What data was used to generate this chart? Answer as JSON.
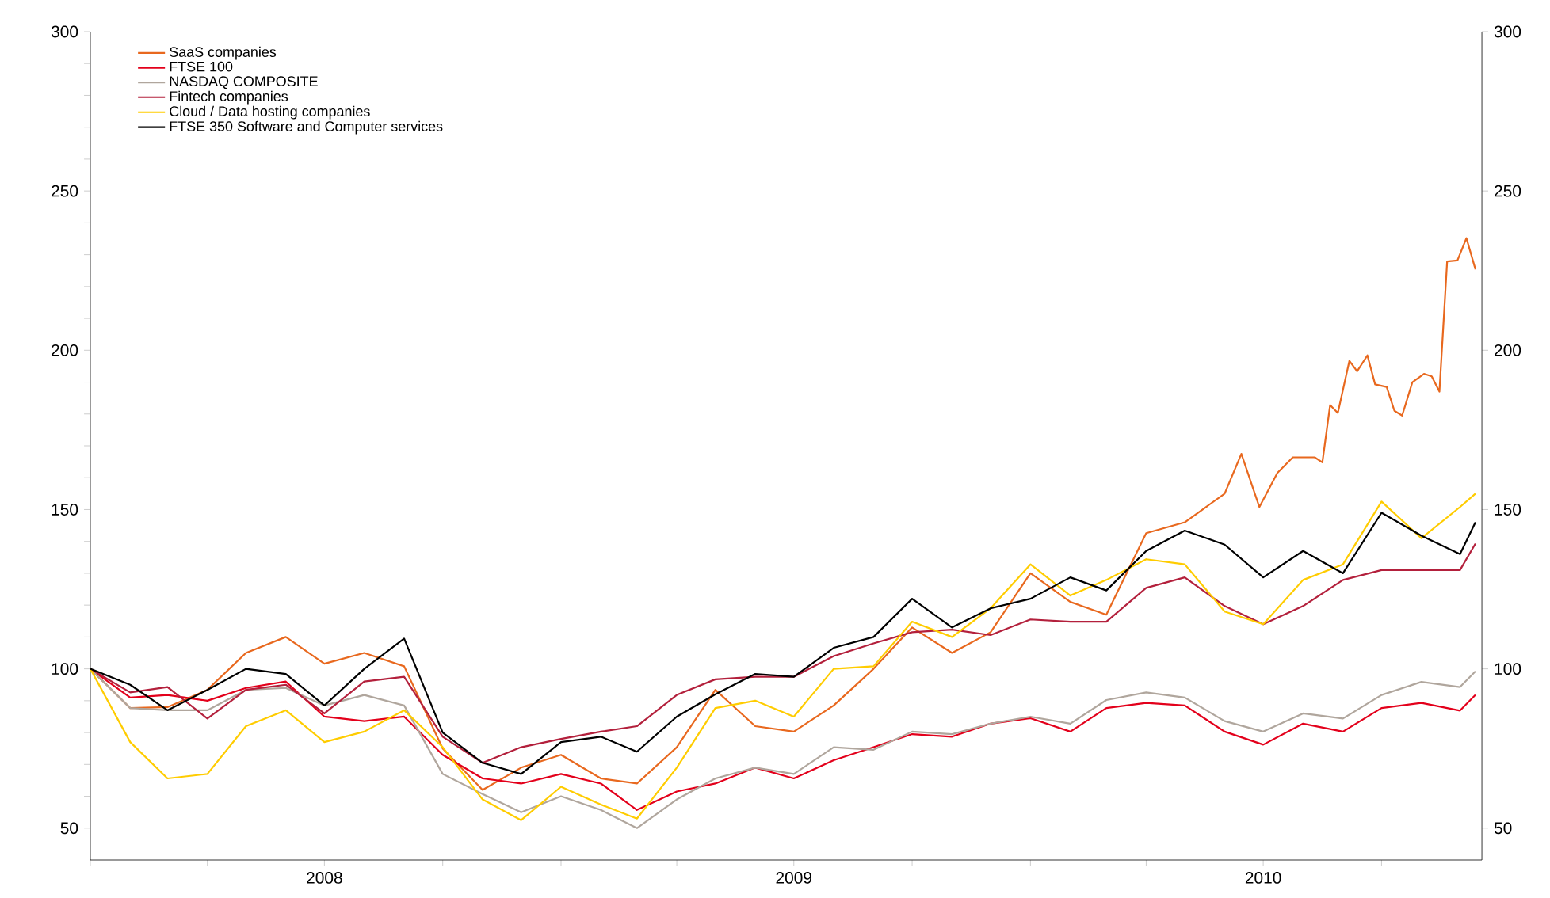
{
  "chart_data": {
    "type": "line",
    "xlim": [
      "2008-01-01",
      "2010-12-18"
    ],
    "ylim": [
      40,
      300
    ],
    "y2lim": [
      40,
      300
    ],
    "xticks": [
      {
        "value": "2008-01-01",
        "label": null
      },
      {
        "value": "2008-04-01",
        "label": null
      },
      {
        "value": "2008-07-01",
        "label": "2008"
      },
      {
        "value": "2008-10-01",
        "label": null
      },
      {
        "value": "2009-01-01",
        "label": null
      },
      {
        "value": "2009-04-01",
        "label": null
      },
      {
        "value": "2009-07-01",
        "label": "2009"
      },
      {
        "value": "2009-10-01",
        "label": null
      },
      {
        "value": "2010-01-01",
        "label": null
      },
      {
        "value": "2010-04-01",
        "label": null
      },
      {
        "value": "2010-07-01",
        "label": "2010"
      },
      {
        "value": "2010-10-01",
        "label": null
      }
    ],
    "yticks": [
      50,
      {
        "value": 60,
        "label": null
      },
      {
        "value": 70,
        "label": null
      },
      {
        "value": 80,
        "label": null
      },
      {
        "value": 90,
        "label": null
      },
      100,
      {
        "value": 110,
        "label": null
      },
      {
        "value": 120,
        "label": null
      },
      {
        "value": 130,
        "label": null
      },
      {
        "value": 140,
        "label": null
      },
      150,
      {
        "value": 160,
        "label": null
      },
      {
        "value": 170,
        "label": null
      },
      {
        "value": 180,
        "label": null
      },
      {
        "value": 190,
        "label": null
      },
      200,
      {
        "value": 210,
        "label": null
      },
      {
        "value": 220,
        "label": null
      },
      {
        "value": 230,
        "label": null
      },
      {
        "value": 240,
        "label": null
      },
      250,
      {
        "value": 260,
        "label": null
      },
      {
        "value": 270,
        "label": null
      },
      {
        "value": 280,
        "label": null
      },
      {
        "value": 290,
        "label": null
      },
      300
    ],
    "y2ticks": [
      50,
      100,
      150,
      200,
      250,
      300
    ],
    "legend": "top left",
    "grid": false,
    "marker": "none",
    "line_style": "solid",
    "x": [
      "2008-01-01",
      "2008-02-01",
      "2008-03-01",
      "2008-04-01",
      "2008-05-01",
      "2008-06-01",
      "2008-07-01",
      "2008-08-01",
      "2008-09-01",
      "2008-10-01",
      "2008-11-01",
      "2008-12-01",
      "2009-01-01",
      "2009-02-01",
      "2009-03-01",
      "2009-04-01",
      "2009-05-01",
      "2009-06-01",
      "2009-07-01",
      "2009-08-01",
      "2009-09-01",
      "2009-10-01",
      "2009-11-01",
      "2009-12-01",
      "2010-01-01",
      "2010-02-01",
      "2010-03-01",
      "2010-04-01",
      "2010-05-01",
      "2010-06-01",
      "2010-07-01",
      "2010-08-01",
      "2010-09-01",
      "2010-10-01",
      "2010-11-01",
      "2010-12-01",
      "2010-12-13"
    ],
    "series": [
      {
        "name": "SaaS companies",
        "color": "#e8681e",
        "x": [
          "2008-01-01",
          "2008-02-01",
          "2008-03-01",
          "2008-04-01",
          "2008-05-01",
          "2008-06-01",
          "2008-07-01",
          "2008-08-01",
          "2008-09-01",
          "2008-10-01",
          "2008-11-01",
          "2008-12-01",
          "2009-01-01",
          "2009-02-01",
          "2009-03-01",
          "2009-04-01",
          "2009-05-01",
          "2009-06-01",
          "2009-07-01",
          "2009-08-01",
          "2009-09-01",
          "2009-10-01",
          "2009-11-01",
          "2009-12-01",
          "2010-01-01",
          "2010-02-01",
          "2010-03-01",
          "2010-04-01",
          "2010-05-01",
          "2010-06-01",
          "2010-06-14",
          "2010-06-28",
          "2010-07-12",
          "2010-07-24",
          "2010-08-10",
          "2010-08-16",
          "2010-08-22",
          "2010-08-28",
          "2010-09-06",
          "2010-09-12",
          "2010-09-20",
          "2010-09-26",
          "2010-10-05",
          "2010-10-11",
          "2010-10-17",
          "2010-10-25",
          "2010-11-03",
          "2010-11-09",
          "2010-11-15",
          "2010-11-21",
          "2010-11-29",
          "2010-12-06",
          "2010-12-13"
        ],
        "values": [
          100,
          87.7,
          88,
          93.4,
          105,
          110,
          101.6,
          105,
          100.8,
          75,
          62,
          69,
          73,
          65.6,
          64,
          75.4,
          93.4,
          82,
          80.3,
          88.5,
          100,
          113,
          105,
          111.5,
          130,
          121,
          117,
          142.6,
          146,
          155,
          167.5,
          150.8,
          161.5,
          166.4,
          166.4,
          164.8,
          182.8,
          180.3,
          196.7,
          193.4,
          198.4,
          189.3,
          188.5,
          181,
          179.5,
          190,
          192.6,
          191.8,
          187,
          227.9,
          228.2,
          235.2,
          225.4
        ]
      },
      {
        "name": "FTSE 100",
        "color": "#e3001b",
        "values": [
          100,
          91,
          91.8,
          90,
          94,
          96,
          85,
          83.6,
          85,
          73,
          65.6,
          64,
          67,
          64,
          55.7,
          61.5,
          64,
          69,
          65.6,
          71.3,
          75.4,
          79.5,
          78.7,
          82.8,
          84.5,
          80.3,
          87.7,
          89.3,
          88.5,
          80.3,
          76.2,
          82.8,
          80.3,
          87.7,
          89.3,
          86.9,
          91.8
        ]
      },
      {
        "name": "NASDAQ COMPOSITE",
        "color": "#b0a69d",
        "values": [
          100,
          87.7,
          87,
          87,
          93.4,
          94,
          88.5,
          91.8,
          88.5,
          67,
          60.7,
          55,
          60,
          55.7,
          50,
          59,
          65.6,
          69,
          67,
          75.4,
          74.6,
          80.3,
          79.5,
          82.8,
          85,
          82.8,
          90.2,
          92.6,
          91,
          83.6,
          80.3,
          86,
          84.4,
          91.8,
          95.9,
          94.3,
          99.2
        ]
      },
      {
        "name": "Fintech companies",
        "color": "#b3203c",
        "values": [
          100,
          92.6,
          94.3,
          84.4,
          93.4,
          95,
          86,
          96,
          97.5,
          78.7,
          70.5,
          75.4,
          78,
          80.3,
          82,
          91.8,
          96.7,
          97.5,
          97.5,
          104,
          108,
          111.5,
          112.3,
          110.6,
          115.5,
          114.8,
          114.8,
          125.4,
          128.7,
          119.7,
          114,
          119.7,
          127.9,
          131,
          131,
          131,
          139.3
        ]
      },
      {
        "name": "Cloud / Data hosting companies",
        "color": "#ffcc00",
        "values": [
          100,
          77,
          65.6,
          67,
          82,
          87,
          77,
          80.3,
          87,
          75.4,
          59,
          52.5,
          63,
          57.4,
          53,
          69,
          87.7,
          90,
          85,
          100,
          100.8,
          114.8,
          110,
          119,
          132.8,
          123,
          127.9,
          134.4,
          132.8,
          118,
          114,
          127.9,
          132.8,
          152.5,
          141,
          150.8,
          155
        ]
      },
      {
        "name": "FTSE 350 Software and Computer services",
        "color": "#000000",
        "values": [
          100,
          95,
          87,
          93.4,
          100,
          98.4,
          88.5,
          100,
          109.5,
          80,
          70.5,
          67,
          77,
          78.7,
          74,
          85,
          92,
          98.4,
          97.5,
          106.6,
          110,
          122,
          113,
          119,
          122,
          128.7,
          124.6,
          137,
          143.4,
          139,
          128.7,
          137,
          130,
          149,
          141.8,
          136,
          146
        ]
      }
    ]
  }
}
